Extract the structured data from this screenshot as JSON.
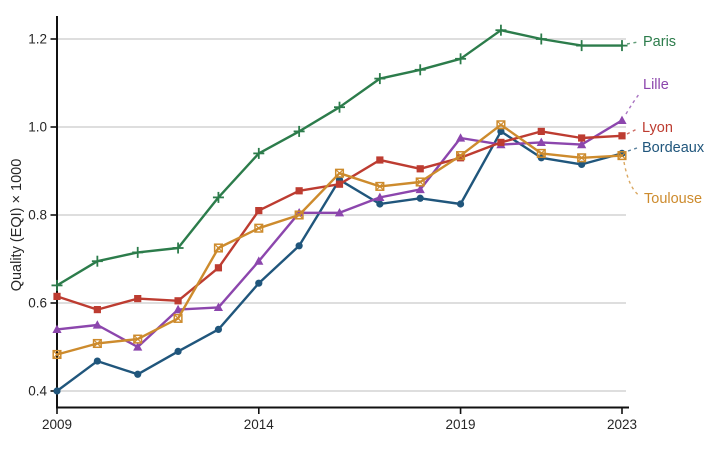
{
  "figure": {
    "background": "#ffffff"
  },
  "axes": {
    "tick_label_color": "#262626",
    "axis_color": "#111111",
    "grid_color": "#d4d4d4"
  },
  "chart_data": {
    "type": "line",
    "title": "",
    "xlabel": "",
    "ylabel": "Quality (EQI) × 1000",
    "x": [
      2009,
      2010,
      2011,
      2012,
      2013,
      2014,
      2015,
      2016,
      2017,
      2018,
      2019,
      2020,
      2021,
      2022,
      2023
    ],
    "x_ticks": [
      2009,
      2014,
      2019,
      2023
    ],
    "x_tick_labels": [
      "2009",
      "2014",
      "2019",
      "2023"
    ],
    "y_ticks": [
      0.4,
      0.6,
      0.8,
      1.0,
      1.2
    ],
    "y_tick_labels": [
      "0.4",
      "0.6",
      "0.8",
      "1.0",
      "1.2"
    ],
    "xlim": [
      2009,
      2023.2
    ],
    "ylim": [
      0.36,
      1.27
    ],
    "grid": "horizontal-only",
    "legend_position": "right-end-labels",
    "series": [
      {
        "name": "Paris",
        "color": "#2c7c4b",
        "marker": "plus",
        "values": [
          0.64,
          0.695,
          0.715,
          0.725,
          0.84,
          0.94,
          0.99,
          1.045,
          1.11,
          1.13,
          1.155,
          1.22,
          1.2,
          1.185,
          1.185
        ]
      },
      {
        "name": "Lille",
        "color": "#8c46ad",
        "marker": "triangle-up",
        "values": [
          0.54,
          0.55,
          0.5,
          0.585,
          0.59,
          0.695,
          0.805,
          0.805,
          0.84,
          0.858,
          0.975,
          0.96,
          0.965,
          0.96,
          1.015
        ]
      },
      {
        "name": "Lyon",
        "color": "#bd3c31",
        "marker": "square-filled",
        "values": [
          0.615,
          0.585,
          0.61,
          0.605,
          0.68,
          0.81,
          0.855,
          0.87,
          0.925,
          0.905,
          0.93,
          0.965,
          0.99,
          0.975,
          0.98
        ]
      },
      {
        "name": "Bordeaux",
        "color": "#20567c",
        "marker": "circle-filled",
        "values": [
          0.4,
          0.468,
          0.438,
          0.49,
          0.54,
          0.645,
          0.73,
          0.88,
          0.825,
          0.838,
          0.825,
          0.99,
          0.93,
          0.915,
          0.94
        ]
      },
      {
        "name": "Toulouse",
        "color": "#cd8b2d",
        "marker": "square-x-open",
        "values": [
          0.483,
          0.508,
          0.518,
          0.565,
          0.725,
          0.77,
          0.8,
          0.895,
          0.865,
          0.875,
          0.935,
          1.005,
          0.94,
          0.93,
          0.935
        ]
      }
    ]
  }
}
